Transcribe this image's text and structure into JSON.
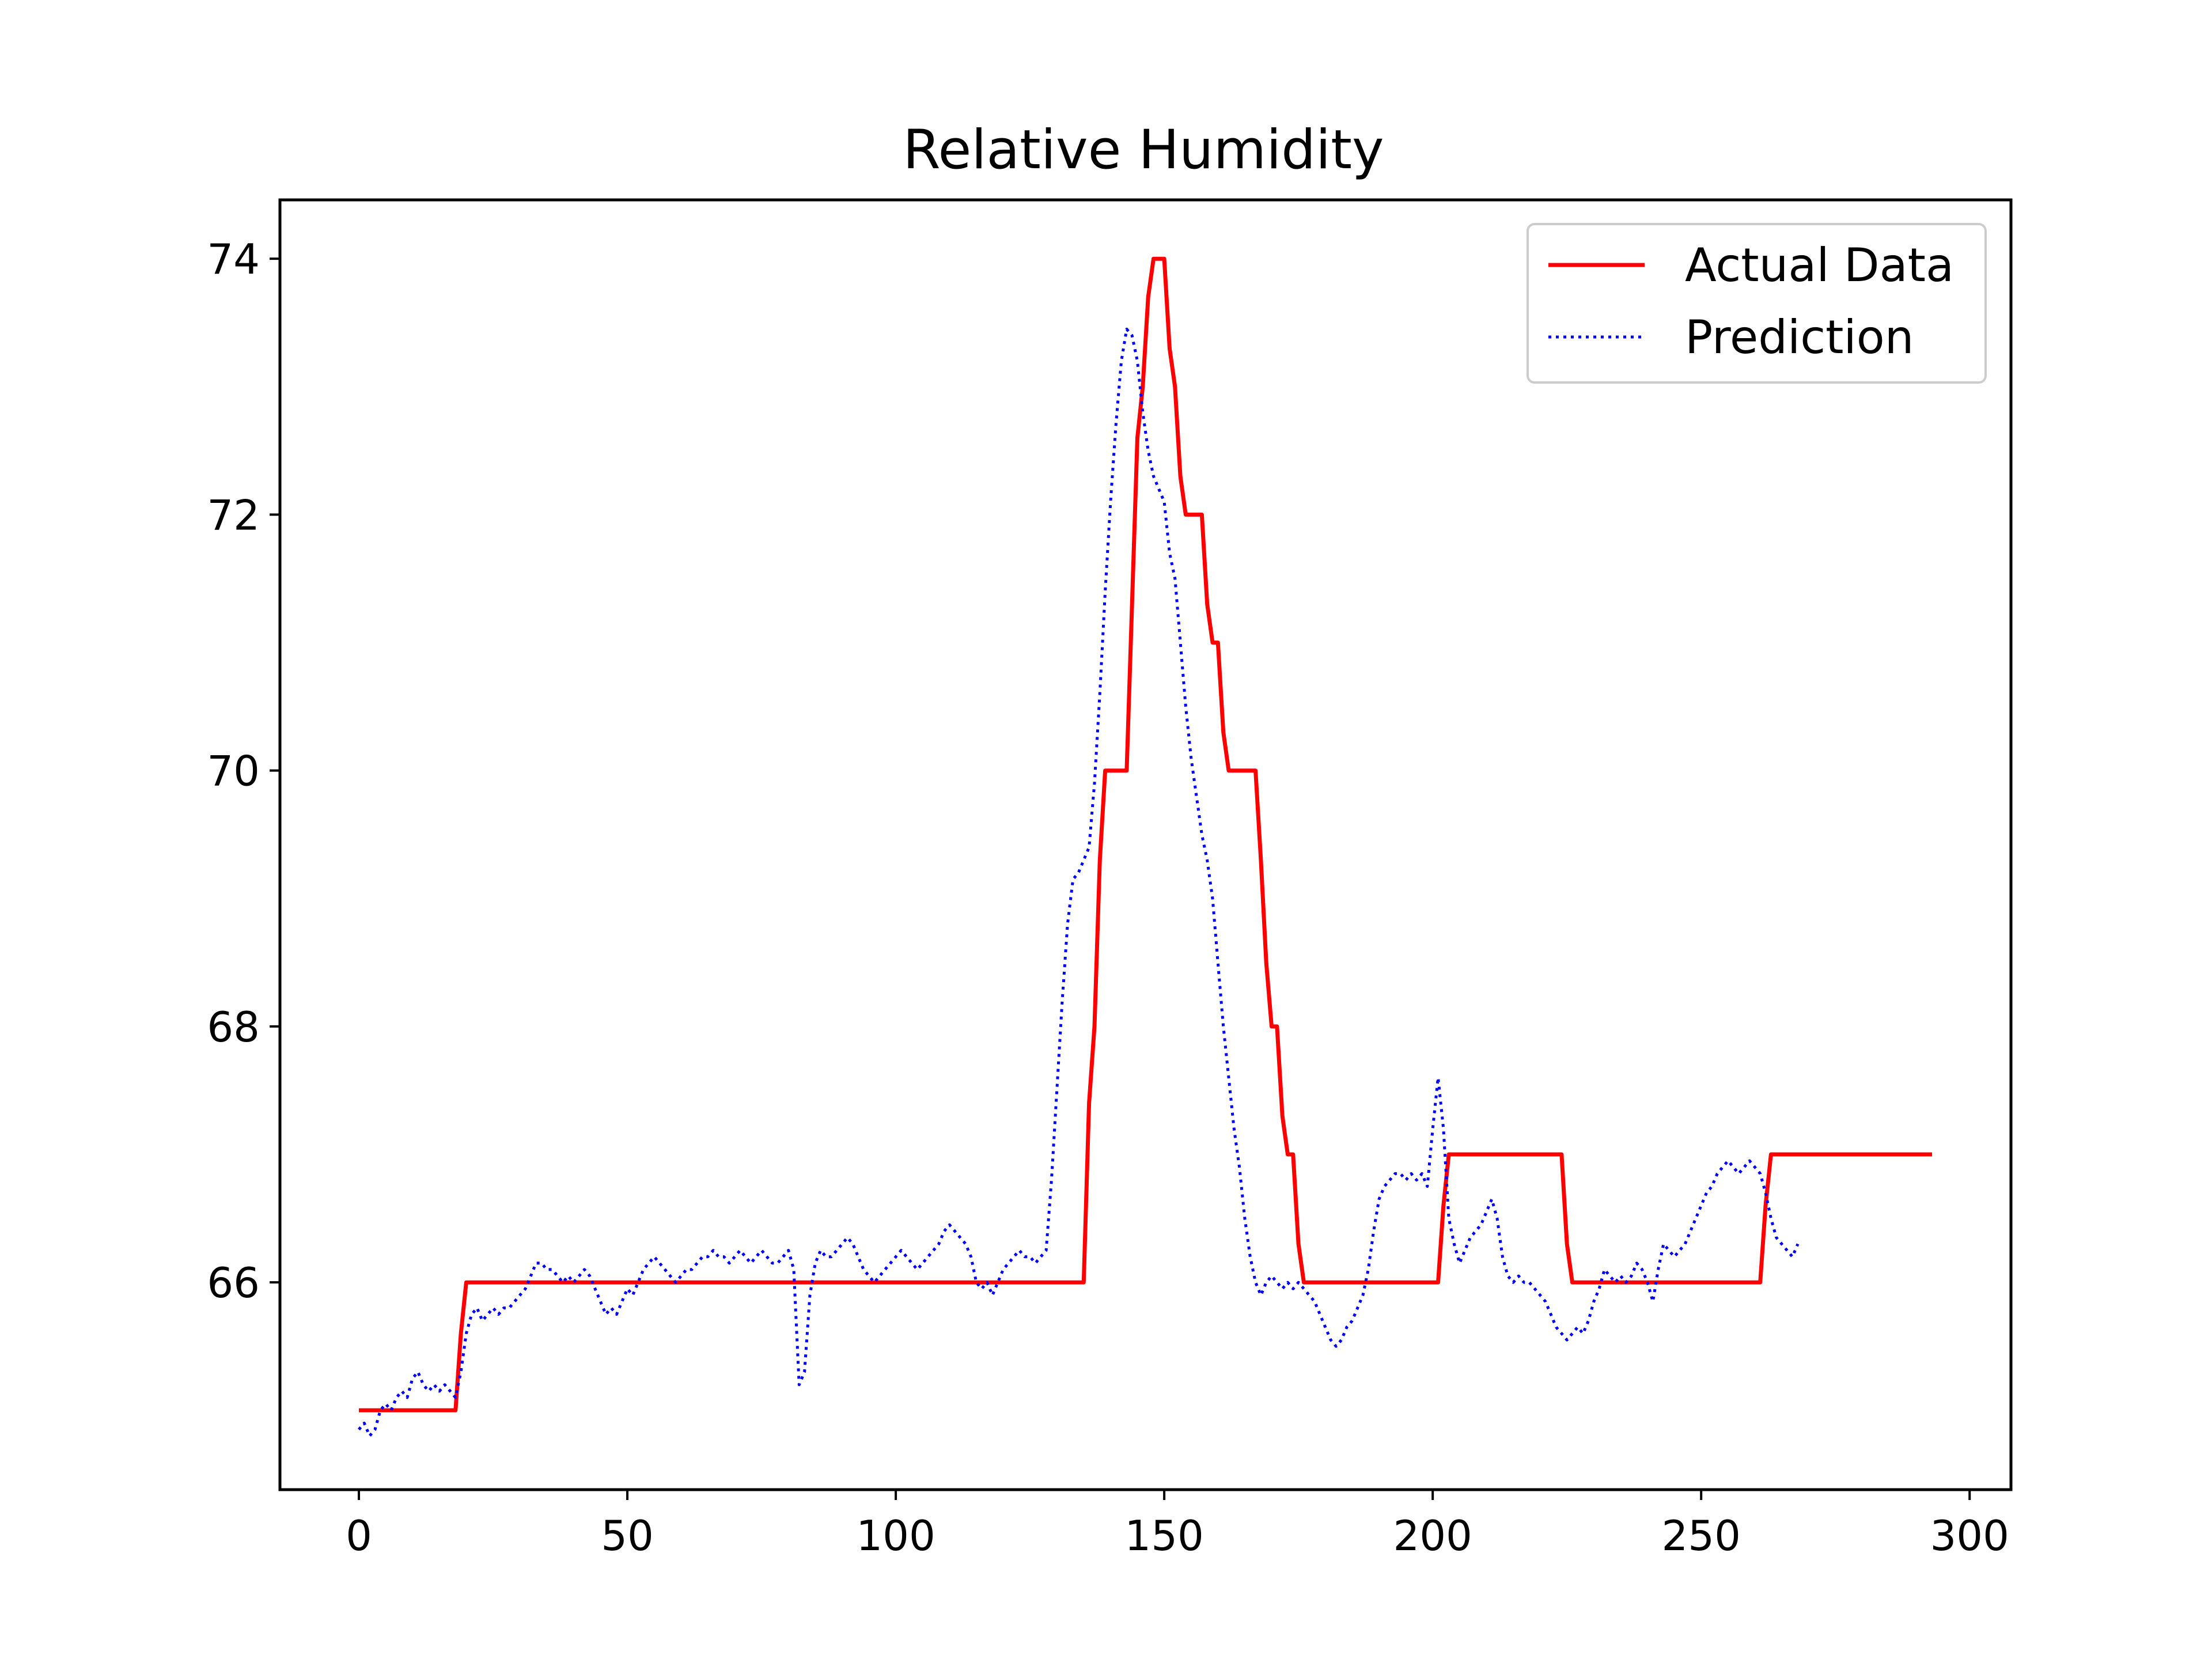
{
  "chart_data": {
    "type": "line",
    "title": "Relative Humidity",
    "xlabel": "",
    "ylabel": "",
    "xlim": [
      -14.7,
      307.7
    ],
    "ylim": [
      64.38,
      74.46
    ],
    "xticks": [
      0,
      50,
      100,
      150,
      200,
      250,
      300
    ],
    "xtick_labels": [
      "0",
      "50",
      "100",
      "150",
      "200",
      "250",
      "300"
    ],
    "yticks": [
      66,
      68,
      70,
      72,
      74
    ],
    "ytick_labels": [
      "66",
      "68",
      "70",
      "72",
      "74"
    ],
    "grid": false,
    "legend_position": "top-right",
    "series": [
      {
        "name": "Actual Data",
        "color": "#ff0000",
        "style": "solid",
        "points": [
          [
            0,
            65
          ],
          [
            18,
            65
          ],
          [
            19,
            65.6
          ],
          [
            20,
            66
          ],
          [
            135,
            66
          ],
          [
            136,
            67.4
          ],
          [
            137,
            68
          ],
          [
            138,
            69.3
          ],
          [
            139,
            70
          ],
          [
            143,
            70
          ],
          [
            144,
            71.3
          ],
          [
            145,
            72.6
          ],
          [
            146,
            73
          ],
          [
            147,
            73.7
          ],
          [
            148,
            74
          ],
          [
            150,
            74
          ],
          [
            151,
            73.3
          ],
          [
            152,
            73
          ],
          [
            153,
            72.3
          ],
          [
            154,
            72
          ],
          [
            157,
            72
          ],
          [
            158,
            71.3
          ],
          [
            159,
            71
          ],
          [
            160,
            71
          ],
          [
            161,
            70.3
          ],
          [
            162,
            70
          ],
          [
            167,
            70
          ],
          [
            168,
            69.3
          ],
          [
            169,
            68.5
          ],
          [
            170,
            68
          ],
          [
            171,
            68
          ],
          [
            172,
            67.3
          ],
          [
            173,
            67
          ],
          [
            174,
            67
          ],
          [
            175,
            66.3
          ],
          [
            176,
            66
          ],
          [
            201,
            66
          ],
          [
            202,
            66.6
          ],
          [
            203,
            67
          ],
          [
            224,
            67
          ],
          [
            225,
            66.3
          ],
          [
            226,
            66
          ],
          [
            261,
            66
          ],
          [
            262,
            66.6
          ],
          [
            263,
            67
          ],
          [
            293,
            67
          ]
        ]
      },
      {
        "name": "Prediction",
        "color": "#0000ff",
        "style": "dotted",
        "points": [
          [
            0,
            64.85
          ],
          [
            1,
            64.9
          ],
          [
            2,
            64.8
          ],
          [
            3,
            64.85
          ],
          [
            4,
            65.0
          ],
          [
            5,
            65.05
          ],
          [
            6,
            65.0
          ],
          [
            7,
            65.1
          ],
          [
            8,
            65.15
          ],
          [
            9,
            65.1
          ],
          [
            10,
            65.25
          ],
          [
            11,
            65.3
          ],
          [
            12,
            65.2
          ],
          [
            13,
            65.15
          ],
          [
            14,
            65.2
          ],
          [
            15,
            65.15
          ],
          [
            16,
            65.2
          ],
          [
            17,
            65.15
          ],
          [
            18,
            65.1
          ],
          [
            19,
            65.3
          ],
          [
            20,
            65.6
          ],
          [
            21,
            65.75
          ],
          [
            22,
            65.8
          ],
          [
            23,
            65.7
          ],
          [
            24,
            65.75
          ],
          [
            25,
            65.8
          ],
          [
            26,
            65.75
          ],
          [
            27,
            65.8
          ],
          [
            28,
            65.8
          ],
          [
            29,
            65.85
          ],
          [
            30,
            65.9
          ],
          [
            31,
            65.95
          ],
          [
            32,
            66.05
          ],
          [
            33,
            66.15
          ],
          [
            34,
            66.15
          ],
          [
            35,
            66.1
          ],
          [
            36,
            66.1
          ],
          [
            37,
            66.05
          ],
          [
            38,
            66.0
          ],
          [
            39,
            66.05
          ],
          [
            40,
            66.0
          ],
          [
            41,
            66.05
          ],
          [
            42,
            66.1
          ],
          [
            43,
            66.05
          ],
          [
            44,
            65.95
          ],
          [
            45,
            65.85
          ],
          [
            46,
            65.75
          ],
          [
            47,
            65.8
          ],
          [
            48,
            65.75
          ],
          [
            49,
            65.85
          ],
          [
            50,
            65.95
          ],
          [
            51,
            65.9
          ],
          [
            52,
            66.0
          ],
          [
            53,
            66.1
          ],
          [
            54,
            66.15
          ],
          [
            55,
            66.2
          ],
          [
            56,
            66.15
          ],
          [
            57,
            66.1
          ],
          [
            58,
            66.05
          ],
          [
            59,
            66.0
          ],
          [
            60,
            66.05
          ],
          [
            61,
            66.1
          ],
          [
            62,
            66.1
          ],
          [
            63,
            66.15
          ],
          [
            64,
            66.2
          ],
          [
            65,
            66.2
          ],
          [
            66,
            66.25
          ],
          [
            67,
            66.2
          ],
          [
            68,
            66.2
          ],
          [
            69,
            66.15
          ],
          [
            70,
            66.2
          ],
          [
            71,
            66.25
          ],
          [
            72,
            66.2
          ],
          [
            73,
            66.15
          ],
          [
            74,
            66.2
          ],
          [
            75,
            66.25
          ],
          [
            76,
            66.2
          ],
          [
            77,
            66.15
          ],
          [
            78,
            66.15
          ],
          [
            79,
            66.2
          ],
          [
            80,
            66.25
          ],
          [
            81,
            66.1
          ],
          [
            82,
            65.2
          ],
          [
            83,
            65.3
          ],
          [
            84,
            65.9
          ],
          [
            85,
            66.15
          ],
          [
            86,
            66.25
          ],
          [
            87,
            66.2
          ],
          [
            88,
            66.2
          ],
          [
            89,
            66.25
          ],
          [
            90,
            66.3
          ],
          [
            91,
            66.35
          ],
          [
            92,
            66.3
          ],
          [
            93,
            66.2
          ],
          [
            94,
            66.1
          ],
          [
            95,
            66.05
          ],
          [
            96,
            66.0
          ],
          [
            97,
            66.05
          ],
          [
            98,
            66.1
          ],
          [
            99,
            66.15
          ],
          [
            100,
            66.2
          ],
          [
            101,
            66.25
          ],
          [
            102,
            66.2
          ],
          [
            103,
            66.15
          ],
          [
            104,
            66.1
          ],
          [
            105,
            66.15
          ],
          [
            106,
            66.2
          ],
          [
            107,
            66.25
          ],
          [
            108,
            66.3
          ],
          [
            109,
            66.4
          ],
          [
            110,
            66.45
          ],
          [
            111,
            66.4
          ],
          [
            112,
            66.35
          ],
          [
            113,
            66.3
          ],
          [
            114,
            66.2
          ],
          [
            115,
            66.0
          ],
          [
            116,
            65.95
          ],
          [
            117,
            66.0
          ],
          [
            118,
            65.9
          ],
          [
            119,
            66.0
          ],
          [
            120,
            66.1
          ],
          [
            121,
            66.15
          ],
          [
            122,
            66.2
          ],
          [
            123,
            66.25
          ],
          [
            124,
            66.2
          ],
          [
            125,
            66.2
          ],
          [
            126,
            66.15
          ],
          [
            127,
            66.2
          ],
          [
            128,
            66.25
          ],
          [
            129,
            66.8
          ],
          [
            130,
            67.5
          ],
          [
            131,
            68.2
          ],
          [
            132,
            68.8
          ],
          [
            133,
            69.15
          ],
          [
            134,
            69.2
          ],
          [
            135,
            69.3
          ],
          [
            136,
            69.4
          ],
          [
            137,
            69.9
          ],
          [
            138,
            70.6
          ],
          [
            139,
            71.4
          ],
          [
            140,
            72.1
          ],
          [
            141,
            72.7
          ],
          [
            142,
            73.2
          ],
          [
            143,
            73.45
          ],
          [
            144,
            73.4
          ],
          [
            145,
            73.2
          ],
          [
            146,
            72.8
          ],
          [
            147,
            72.5
          ],
          [
            148,
            72.3
          ],
          [
            149,
            72.2
          ],
          [
            150,
            72.1
          ],
          [
            151,
            71.7
          ],
          [
            152,
            71.5
          ],
          [
            153,
            71.0
          ],
          [
            154,
            70.5
          ],
          [
            155,
            70.1
          ],
          [
            156,
            69.8
          ],
          [
            157,
            69.5
          ],
          [
            158,
            69.3
          ],
          [
            159,
            69.0
          ],
          [
            160,
            68.5
          ],
          [
            161,
            68.0
          ],
          [
            162,
            67.6
          ],
          [
            163,
            67.2
          ],
          [
            164,
            66.9
          ],
          [
            165,
            66.5
          ],
          [
            166,
            66.2
          ],
          [
            167,
            66.0
          ],
          [
            168,
            65.9
          ],
          [
            169,
            66.0
          ],
          [
            170,
            66.05
          ],
          [
            171,
            66.0
          ],
          [
            172,
            65.95
          ],
          [
            173,
            66.0
          ],
          [
            174,
            65.95
          ],
          [
            175,
            66.0
          ],
          [
            176,
            65.95
          ],
          [
            177,
            65.9
          ],
          [
            178,
            65.85
          ],
          [
            179,
            65.75
          ],
          [
            180,
            65.65
          ],
          [
            181,
            65.55
          ],
          [
            182,
            65.5
          ],
          [
            183,
            65.55
          ],
          [
            184,
            65.65
          ],
          [
            185,
            65.7
          ],
          [
            186,
            65.8
          ],
          [
            187,
            65.9
          ],
          [
            188,
            66.1
          ],
          [
            189,
            66.4
          ],
          [
            190,
            66.65
          ],
          [
            191,
            66.75
          ],
          [
            192,
            66.8
          ],
          [
            193,
            66.85
          ],
          [
            194,
            66.85
          ],
          [
            195,
            66.8
          ],
          [
            196,
            66.85
          ],
          [
            197,
            66.8
          ],
          [
            198,
            66.85
          ],
          [
            199,
            66.75
          ],
          [
            200,
            67.2
          ],
          [
            201,
            67.6
          ],
          [
            202,
            67.2
          ],
          [
            203,
            66.5
          ],
          [
            204,
            66.3
          ],
          [
            205,
            66.15
          ],
          [
            206,
            66.25
          ],
          [
            207,
            66.35
          ],
          [
            208,
            66.4
          ],
          [
            209,
            66.45
          ],
          [
            210,
            66.55
          ],
          [
            211,
            66.65
          ],
          [
            212,
            66.5
          ],
          [
            213,
            66.2
          ],
          [
            214,
            66.05
          ],
          [
            215,
            66.0
          ],
          [
            216,
            66.05
          ],
          [
            217,
            66.0
          ],
          [
            218,
            66.0
          ],
          [
            219,
            65.95
          ],
          [
            220,
            65.9
          ],
          [
            221,
            65.85
          ],
          [
            222,
            65.75
          ],
          [
            223,
            65.65
          ],
          [
            224,
            65.6
          ],
          [
            225,
            65.55
          ],
          [
            226,
            65.6
          ],
          [
            227,
            65.65
          ],
          [
            228,
            65.6
          ],
          [
            229,
            65.7
          ],
          [
            230,
            65.85
          ],
          [
            231,
            65.95
          ],
          [
            232,
            66.1
          ],
          [
            233,
            66.05
          ],
          [
            234,
            66.0
          ],
          [
            235,
            66.05
          ],
          [
            236,
            66.0
          ],
          [
            237,
            66.05
          ],
          [
            238,
            66.15
          ],
          [
            239,
            66.1
          ],
          [
            240,
            66.0
          ],
          [
            241,
            65.85
          ],
          [
            242,
            66.1
          ],
          [
            243,
            66.3
          ],
          [
            244,
            66.25
          ],
          [
            245,
            66.2
          ],
          [
            246,
            66.25
          ],
          [
            247,
            66.3
          ],
          [
            248,
            66.4
          ],
          [
            249,
            66.5
          ],
          [
            250,
            66.6
          ],
          [
            251,
            66.7
          ],
          [
            252,
            66.75
          ],
          [
            253,
            66.85
          ],
          [
            254,
            66.9
          ],
          [
            255,
            66.95
          ],
          [
            256,
            66.9
          ],
          [
            257,
            66.85
          ],
          [
            258,
            66.9
          ],
          [
            259,
            66.95
          ],
          [
            260,
            66.9
          ],
          [
            261,
            66.85
          ],
          [
            262,
            66.7
          ],
          [
            263,
            66.5
          ],
          [
            264,
            66.35
          ],
          [
            265,
            66.3
          ],
          [
            266,
            66.25
          ],
          [
            267,
            66.2
          ],
          [
            268,
            66.3
          ]
        ]
      }
    ]
  }
}
